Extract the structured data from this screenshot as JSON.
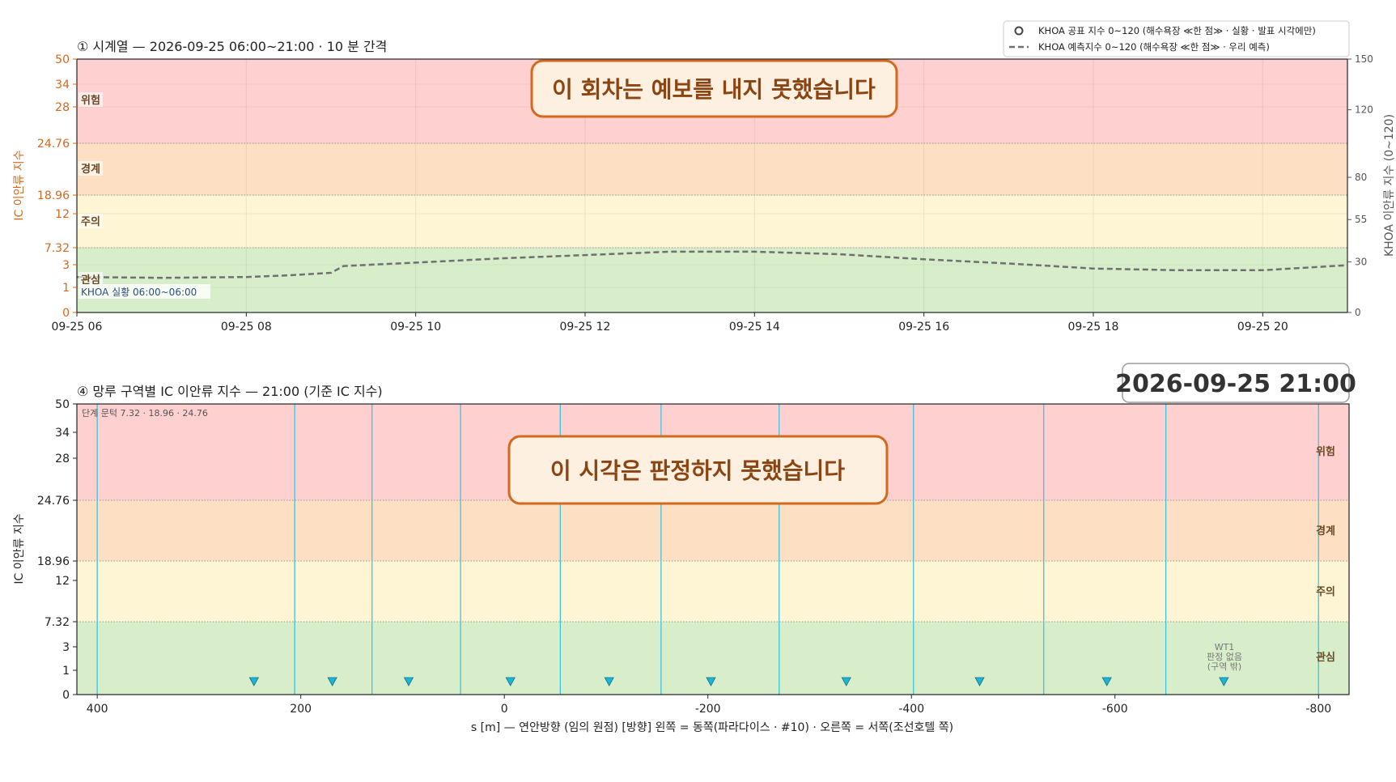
{
  "colors": {
    "zone_attention": "#d8eecb",
    "zone_caution": "#fdf5d3",
    "zone_warning": "#fde0c4",
    "zone_danger": "#fed0d0",
    "accent_orange": "#d2691e",
    "forecast_line": "#707070",
    "boundary_line": "#3fc3dd",
    "marker_fill": "#18b7d6"
  },
  "legend": {
    "items": [
      {
        "icon": "open-circle-marker-icon",
        "label": "KHOA 공표 지수 0~120 (해수욕장 ≪한 점≫ · 실황 · 발표 시각에만)"
      },
      {
        "icon": "dashed-line-icon",
        "label": "KHOA 예측지수 0~120 (해수욕장 ≪한 점≫ · 우리 예측)"
      }
    ]
  },
  "banners": {
    "top": "이 회차는 예보를 내지 못했습니다",
    "bottom": "이 시각은 판정하지 못했습니다"
  },
  "timestamp": "2026-09-25  21:00",
  "panel1": {
    "title": "① 시계열 — 2026-09-25 06:00~21:00 · 10 분 간격",
    "ylabel_left": "IC 이안류 지수",
    "ylabel_right": "KHOA 이안류 지수 (0~120)",
    "obs_note": "KHOA 실황 06:00~06:00",
    "zone_labels": [
      "위험",
      "경계",
      "주의",
      "관심"
    ]
  },
  "panel2": {
    "title": "④ 망루 구역별 IC 이안류 지수 — 21:00   (기준 IC 지수)",
    "ylabel": "IC 이안류 지수",
    "xlabel": "s [m] — 연안방향 (임의 원점)     [방향] 왼쪽 = 동쪽(파라다이스 · #10) · 오른쪽 = 서쪽(조선호텔 쪽)",
    "threshold_note": "단계 문턱 7.32 · 18.96 · 24.76",
    "zone_labels": [
      "위험",
      "경계",
      "주의",
      "관심"
    ],
    "wt_note": [
      "WT1",
      "판정 없음",
      "(구역 밖)"
    ]
  },
  "chart_data": [
    {
      "type": "line",
      "title": "① 시계열 — 2026-09-25 06:00~21:00 · 10 분 간격",
      "xlabel": "",
      "ylabel": "IC 이안류 지수",
      "ylabel_right": "KHOA 이안류 지수 (0~120)",
      "x_ticks": [
        "09-25 06",
        "09-25 08",
        "09-25 10",
        "09-25 12",
        "09-25 14",
        "09-25 16",
        "09-25 18",
        "09-25 20"
      ],
      "xlim_hours": [
        6,
        21
      ],
      "y_ticks": [
        "0",
        "1",
        "3",
        "7.32",
        "12",
        "18.96",
        "24.76",
        "28",
        "34",
        "50"
      ],
      "y_ticks_right": [
        "0",
        "30",
        "55",
        "80",
        "120",
        "150"
      ],
      "ylim_right": [
        0,
        150
      ],
      "thresholds": [
        7.32,
        18.96,
        24.76
      ],
      "zones": [
        "관심",
        "주의",
        "경계",
        "위험"
      ],
      "grid": true,
      "legend_position": "top-right",
      "series": [
        {
          "name": "KHOA 예측지수 0~120 (해수욕장 ≪한 점≫ · 우리 예측)",
          "style": "dashed",
          "axis": "right",
          "x": [
            6.0,
            7.0,
            8.0,
            8.5,
            9.0,
            9.15,
            10.0,
            11.0,
            12.0,
            13.0,
            14.0,
            15.0,
            16.0,
            17.0,
            18.0,
            19.0,
            20.0,
            21.0
          ],
          "y": [
            21,
            20.5,
            21,
            22,
            23.5,
            27.5,
            29.5,
            32,
            34,
            36,
            36,
            34.5,
            31.5,
            29,
            26,
            25,
            25,
            28
          ]
        }
      ]
    },
    {
      "type": "scatter",
      "title": "④ 망루 구역별 IC 이안류 지수 — 21:00   (기준 IC 지수)",
      "xlabel": "s [m] — 연안방향 (임의 원점)     [방향] 왼쪽 = 동쪽(파라다이스 · #10) · 오른쪽 = 서쪽(조선호텔 쪽)",
      "ylabel": "IC 이안류 지수",
      "x_ticks": [
        "400",
        "200",
        "0",
        "-200",
        "-400",
        "-600",
        "-800"
      ],
      "xlim": [
        420,
        -830
      ],
      "y_ticks": [
        "0",
        "1",
        "3",
        "7.32",
        "12",
        "18.96",
        "24.76",
        "28",
        "34",
        "50"
      ],
      "thresholds": [
        7.32,
        18.96,
        24.76
      ],
      "zones": [
        "관심",
        "주의",
        "경계",
        "위험"
      ],
      "zone_boundaries_s": [
        400,
        206,
        130,
        43,
        -55,
        -154,
        -270,
        -402,
        -530,
        -650,
        -800
      ],
      "markers_s": [
        246,
        169,
        94,
        -6,
        -103,
        -203,
        -336,
        -467,
        -592,
        -707
      ],
      "marker_value": 0.5,
      "grid": false
    }
  ]
}
